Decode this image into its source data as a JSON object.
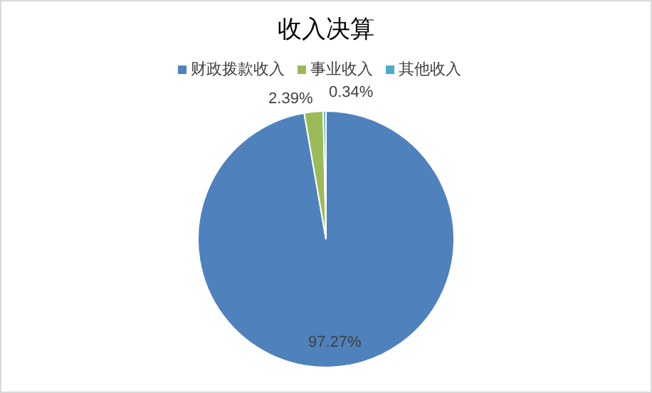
{
  "chart_data": {
    "type": "pie",
    "title": "收入决算",
    "categories": [
      "财政拨款收入",
      "事业收入",
      "其他收入"
    ],
    "values": [
      97.27,
      2.39,
      0.34
    ],
    "colors": [
      "#4f81bd",
      "#9bbb59",
      "#4bacc6"
    ],
    "value_labels": [
      "97.27%",
      "2.39%",
      "0.34%"
    ],
    "legend": "top"
  }
}
